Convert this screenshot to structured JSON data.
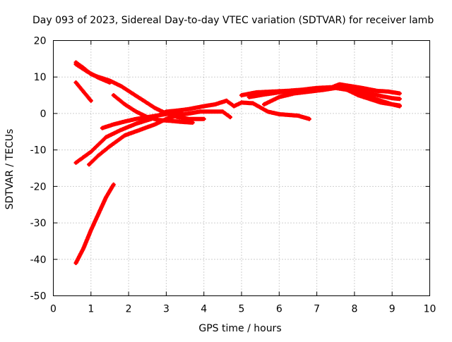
{
  "chart_data": {
    "type": "scatter",
    "title": "Day 093 of 2023, Sidereal Day-to-day VTEC variation (SDTVAR) for receiver lamb",
    "xlabel": "GPS time / hours",
    "ylabel": "SDTVAR / TECUs",
    "xlim": [
      0,
      10
    ],
    "ylim": [
      -50,
      20
    ],
    "xticks": [
      "0",
      "1",
      "2",
      "3",
      "4",
      "5",
      "6",
      "7",
      "8",
      "9",
      "10"
    ],
    "yticks": [
      "-50",
      "-40",
      "-30",
      "-20",
      "-10",
      "0",
      "10",
      "20"
    ],
    "grid": true,
    "marker_color": "#ff0000",
    "series": [
      {
        "points": [
          [
            0.6,
            14
          ],
          [
            0.8,
            12.5
          ],
          [
            1.0,
            10.8
          ],
          [
            1.2,
            10
          ],
          [
            1.5,
            9
          ],
          [
            1.8,
            7.5
          ],
          [
            2.1,
            5.5
          ],
          [
            2.4,
            3.5
          ],
          [
            2.7,
            1.5
          ],
          [
            3.0,
            0
          ],
          [
            3.3,
            -1
          ],
          [
            3.6,
            -1.5
          ],
          [
            4.0,
            -1.5
          ]
        ]
      },
      {
        "points": [
          [
            0.6,
            13.5
          ],
          [
            0.9,
            11.5
          ],
          [
            1.2,
            9.8
          ],
          [
            1.5,
            8.5
          ]
        ]
      },
      {
        "points": [
          [
            0.6,
            8.5
          ],
          [
            0.8,
            6
          ],
          [
            1.0,
            3.5
          ]
        ]
      },
      {
        "points": [
          [
            1.6,
            5
          ],
          [
            1.9,
            2.5
          ],
          [
            2.2,
            0.5
          ],
          [
            2.5,
            -1
          ],
          [
            2.8,
            -1.8
          ],
          [
            3.1,
            -2
          ],
          [
            3.4,
            -2.3
          ],
          [
            3.7,
            -2.5
          ]
        ]
      },
      {
        "points": [
          [
            0.6,
            -13.5
          ],
          [
            1.0,
            -10.5
          ],
          [
            1.4,
            -6.5
          ],
          [
            1.8,
            -4.5
          ],
          [
            2.2,
            -2.8
          ],
          [
            2.6,
            -1.5
          ],
          [
            3.0,
            0.5
          ],
          [
            3.3,
            0.8
          ],
          [
            3.6,
            1.2
          ],
          [
            4.0,
            2
          ],
          [
            4.3,
            2.5
          ],
          [
            4.6,
            3.5
          ],
          [
            4.8,
            2
          ],
          [
            5.0,
            3
          ],
          [
            5.3,
            2.8
          ],
          [
            5.7,
            0.5
          ],
          [
            6.0,
            -0.2
          ],
          [
            6.5,
            -0.6
          ],
          [
            6.8,
            -1.5
          ]
        ]
      },
      {
        "points": [
          [
            0.95,
            -14
          ],
          [
            1.2,
            -11.5
          ],
          [
            1.5,
            -9
          ],
          [
            1.9,
            -6
          ],
          [
            2.3,
            -4.5
          ],
          [
            2.7,
            -3
          ],
          [
            3.0,
            -1.5
          ],
          [
            3.3,
            -0.5
          ],
          [
            3.6,
            0
          ],
          [
            3.9,
            0.5
          ],
          [
            4.2,
            0.5
          ],
          [
            4.5,
            0.5
          ],
          [
            4.7,
            -1
          ]
        ]
      },
      {
        "points": [
          [
            1.3,
            -4
          ],
          [
            1.6,
            -3
          ],
          [
            1.9,
            -2.2
          ],
          [
            2.2,
            -1.5
          ],
          [
            2.5,
            -1
          ],
          [
            2.8,
            -0.5
          ],
          [
            3.1,
            0
          ],
          [
            3.4,
            0.2
          ]
        ]
      },
      {
        "points": [
          [
            5.0,
            5
          ],
          [
            5.4,
            5.8
          ],
          [
            5.8,
            6
          ],
          [
            6.2,
            6.2
          ],
          [
            6.6,
            6.5
          ],
          [
            7.0,
            7
          ],
          [
            7.4,
            7.2
          ],
          [
            7.6,
            8
          ],
          [
            7.9,
            7.5
          ],
          [
            8.2,
            7
          ],
          [
            8.6,
            6.2
          ],
          [
            8.9,
            6
          ],
          [
            9.2,
            5.5
          ]
        ]
      },
      {
        "points": [
          [
            5.2,
            4.5
          ],
          [
            5.6,
            5.2
          ],
          [
            6.0,
            5.8
          ],
          [
            6.4,
            6.2
          ],
          [
            6.8,
            6.6
          ],
          [
            7.2,
            6.8
          ],
          [
            7.5,
            7.2
          ],
          [
            7.8,
            6.8
          ],
          [
            8.1,
            6.2
          ],
          [
            8.4,
            5.5
          ],
          [
            8.7,
            4.8
          ],
          [
            9.0,
            4.2
          ],
          [
            9.2,
            4
          ]
        ]
      },
      {
        "points": [
          [
            5.6,
            2.5
          ],
          [
            6.0,
            4.5
          ],
          [
            6.4,
            5.5
          ],
          [
            6.8,
            6
          ],
          [
            7.2,
            6.5
          ],
          [
            7.5,
            7
          ],
          [
            7.8,
            6.5
          ],
          [
            8.1,
            5.5
          ],
          [
            8.4,
            4.5
          ],
          [
            8.7,
            3.5
          ],
          [
            9.0,
            2.5
          ],
          [
            9.2,
            2
          ]
        ]
      },
      {
        "points": [
          [
            7.6,
            7.5
          ],
          [
            7.9,
            6
          ],
          [
            8.1,
            5
          ],
          [
            8.4,
            4
          ],
          [
            8.7,
            3
          ],
          [
            9.0,
            2.5
          ],
          [
            9.2,
            2.2
          ]
        ]
      },
      {
        "points": [
          [
            0.6,
            -41
          ],
          [
            0.8,
            -37
          ],
          [
            1.0,
            -32
          ],
          [
            1.2,
            -27.5
          ],
          [
            1.4,
            -23
          ],
          [
            1.6,
            -19.5
          ]
        ]
      }
    ]
  }
}
